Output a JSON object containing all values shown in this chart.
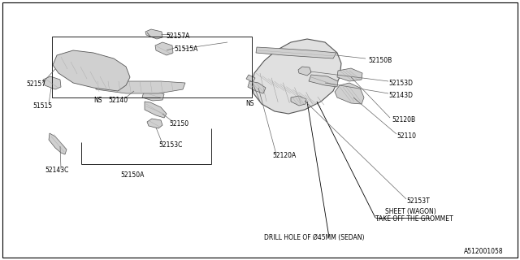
{
  "background_color": "#ffffff",
  "border_color": "#000000",
  "fig_width": 6.4,
  "fig_height": 3.2,
  "dpi": 100,
  "footnote": "A512001058",
  "part_color": "#c8c8c8",
  "part_edge": "#555555",
  "line_color": "#666666",
  "text_color": "#000000",
  "labels": {
    "drill_hole": "DRILL HOLE OF Ø45MM (SEDAN)",
    "grommet1": "TAKE OFF THE GROMMET",
    "grommet2": "SHEET (WAGON)",
    "t52153T": "52153T",
    "t52120A": "52120A",
    "t52110": "52110",
    "t52120B": "52120B",
    "tNS_r": "NS",
    "t52150A": "52150A",
    "t52153C": "52153C",
    "t52143C": "52143C",
    "t52150": "52150",
    "t51515": "51515",
    "tNS_l": "NS",
    "t52140": "52140",
    "t52157": "52157",
    "t52143D": "52143D",
    "t52153D": "52153D",
    "t52150B": "52150B",
    "t51515A": "51515A",
    "t52157A": "52157A"
  }
}
